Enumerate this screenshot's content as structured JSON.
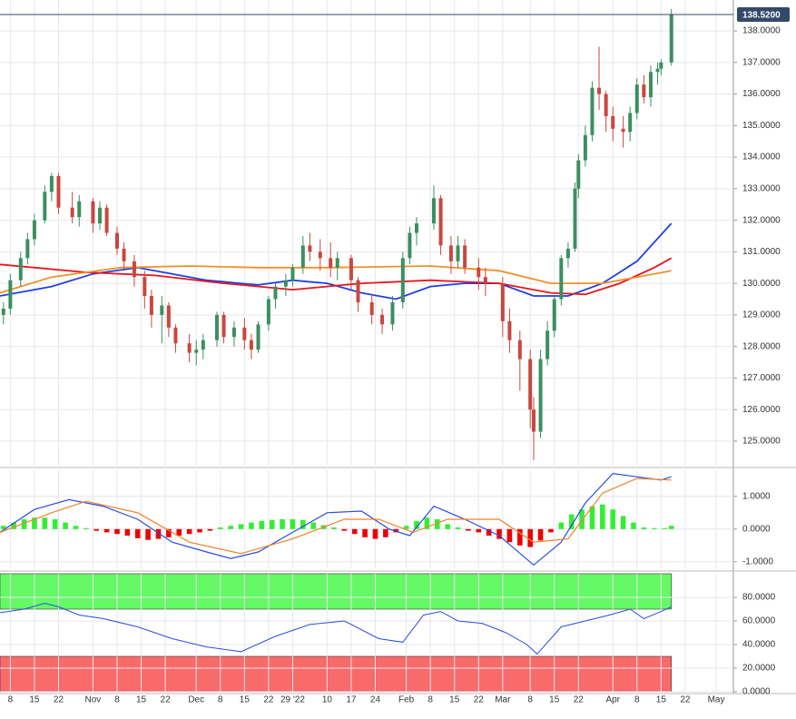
{
  "chart_data": [
    {
      "type": "candlestick",
      "up_color": "#3c8f5f",
      "down_color": "#c9473f",
      "xlim": [
        5,
        218
      ],
      "ylim": [
        124.25,
        138.98
      ],
      "yticks": [
        {
          "value": 125,
          "label": "125.0000"
        },
        {
          "value": 126,
          "label": "126.0000"
        },
        {
          "value": 127,
          "label": "127.0000"
        },
        {
          "value": 128,
          "label": "128.0000"
        },
        {
          "value": 129,
          "label": "129.0000"
        },
        {
          "value": 130,
          "label": "130.0000"
        },
        {
          "value": 131,
          "label": "131.0000"
        },
        {
          "value": 132,
          "label": "132.0000"
        },
        {
          "value": 133,
          "label": "133.0000"
        },
        {
          "value": 134,
          "label": "134.0000"
        },
        {
          "value": 135,
          "label": "135.0000"
        },
        {
          "value": 136,
          "label": "136.0000"
        },
        {
          "value": 137,
          "label": "137.0000"
        },
        {
          "value": 138,
          "label": "138.0000"
        }
      ],
      "last_price": {
        "value": 138.52,
        "label": "138.5200"
      },
      "x": [
        6,
        8,
        11,
        13,
        15,
        18,
        20,
        22,
        26,
        28,
        32,
        34,
        36,
        39,
        41,
        44,
        47,
        49,
        52,
        54,
        56,
        60,
        62,
        64,
        68,
        70,
        73,
        76,
        78,
        80,
        83,
        85,
        88,
        90,
        93,
        95,
        98,
        101,
        103,
        107,
        109,
        113,
        116,
        119,
        122,
        124,
        126,
        131,
        133,
        136,
        138,
        140,
        144,
        146,
        151,
        153,
        156,
        159,
        160,
        162,
        164,
        166,
        168,
        170,
        172,
        173,
        175,
        177,
        179,
        181,
        183,
        186,
        188,
        190,
        192,
        194,
        196,
        197,
        200
      ],
      "open": [
        129.0,
        129.2,
        130.1,
        130.8,
        131.4,
        132.0,
        132.9,
        133.4,
        132.4,
        132.1,
        132.6,
        131.9,
        132.4,
        131.6,
        131.1,
        130.7,
        130.2,
        129.6,
        129.0,
        129.3,
        128.6,
        128.1,
        127.8,
        127.9,
        128.2,
        129.0,
        128.3,
        128.6,
        128.2,
        127.9,
        128.7,
        129.5,
        129.9,
        130.1,
        130.5,
        131.2,
        131.0,
        130.8,
        130.5,
        130.8,
        130.1,
        129.4,
        129.0,
        128.7,
        129.4,
        130.8,
        131.6,
        131.9,
        132.7,
        131.2,
        130.7,
        131.2,
        130.5,
        130.2,
        130.0,
        128.8,
        128.2,
        127.6,
        126.0,
        125.3,
        127.6,
        128.5,
        129.5,
        130.8,
        131.1,
        133.0,
        133.9,
        134.7,
        136.2,
        136.0,
        135.3,
        134.9,
        134.8,
        135.4,
        136.3,
        135.9,
        136.7,
        136.8,
        137.0
      ],
      "high": [
        129.4,
        130.3,
        131.0,
        131.6,
        132.2,
        133.1,
        133.5,
        133.5,
        132.9,
        132.8,
        132.7,
        132.6,
        132.5,
        131.8,
        131.3,
        130.9,
        130.4,
        129.8,
        129.6,
        129.4,
        128.7,
        128.4,
        128.2,
        128.4,
        129.1,
        129.1,
        128.8,
        128.9,
        128.4,
        128.8,
        129.6,
        130.0,
        130.3,
        130.6,
        131.5,
        131.6,
        131.4,
        131.3,
        131.0,
        130.9,
        130.2,
        129.6,
        129.2,
        129.6,
        131.0,
        131.8,
        132.1,
        133.1,
        132.8,
        131.5,
        131.5,
        131.4,
        130.8,
        130.5,
        130.2,
        129.2,
        128.5,
        127.9,
        126.4,
        127.9,
        128.8,
        129.6,
        130.9,
        131.3,
        133.2,
        134.1,
        135.0,
        136.4,
        137.5,
        136.1,
        135.6,
        135.3,
        135.6,
        136.5,
        136.6,
        136.9,
        137.0,
        137.1,
        138.7
      ],
      "low": [
        128.7,
        129.0,
        129.9,
        130.6,
        131.2,
        131.9,
        132.6,
        132.2,
        131.9,
        131.8,
        131.6,
        131.7,
        131.5,
        130.9,
        130.4,
        129.9,
        129.2,
        128.6,
        128.1,
        128.3,
        127.8,
        127.5,
        127.4,
        127.6,
        128.0,
        128.1,
        128.0,
        127.9,
        127.6,
        127.8,
        128.5,
        129.2,
        129.6,
        129.9,
        130.3,
        130.7,
        130.4,
        130.2,
        130.1,
        129.8,
        129.1,
        128.7,
        128.4,
        128.5,
        129.2,
        130.6,
        131.2,
        131.7,
        130.9,
        130.3,
        130.5,
        130.3,
        129.8,
        129.6,
        128.3,
        127.8,
        126.6,
        125.4,
        124.4,
        125.1,
        127.4,
        128.3,
        129.3,
        130.5,
        131.0,
        132.7,
        133.7,
        134.5,
        135.5,
        134.8,
        134.5,
        134.3,
        134.5,
        135.2,
        135.7,
        135.6,
        136.3,
        136.6,
        136.9
      ],
      "close": [
        129.2,
        130.1,
        130.8,
        131.4,
        132.0,
        132.9,
        133.4,
        132.4,
        132.1,
        132.6,
        131.9,
        132.4,
        131.6,
        131.1,
        130.7,
        130.2,
        129.6,
        129.0,
        129.3,
        128.6,
        128.1,
        127.8,
        127.9,
        128.2,
        129.0,
        128.3,
        128.6,
        128.2,
        127.9,
        128.7,
        129.5,
        129.9,
        130.1,
        130.5,
        131.2,
        131.0,
        130.8,
        130.5,
        130.8,
        130.1,
        129.4,
        129.0,
        128.7,
        129.4,
        130.8,
        131.6,
        131.9,
        132.7,
        131.2,
        130.7,
        131.2,
        130.5,
        130.2,
        130.0,
        128.8,
        128.2,
        127.6,
        126.0,
        125.3,
        127.6,
        128.5,
        129.5,
        130.8,
        131.1,
        133.0,
        133.9,
        134.7,
        136.2,
        136.0,
        135.3,
        134.9,
        134.8,
        135.4,
        136.3,
        135.9,
        136.7,
        136.8,
        137.0,
        138.52
      ],
      "overlays": [
        {
          "color": "#1f3fe0",
          "x": [
            5,
            20,
            32,
            45,
            55,
            65,
            80,
            90,
            100,
            110,
            120,
            130,
            140,
            150,
            160,
            170,
            180,
            190,
            200
          ],
          "values": [
            129.6,
            129.9,
            130.3,
            130.5,
            130.3,
            130.1,
            129.95,
            130.1,
            130.0,
            129.7,
            129.5,
            129.9,
            130.0,
            130.0,
            129.6,
            129.6,
            130.0,
            130.7,
            131.9
          ]
        },
        {
          "color": "#e5161b",
          "x": [
            5,
            30,
            50,
            70,
            90,
            110,
            130,
            150,
            165,
            175,
            185,
            195,
            200
          ],
          "values": [
            130.6,
            130.35,
            130.25,
            130.0,
            129.8,
            130.0,
            130.1,
            130.0,
            129.7,
            129.65,
            130.0,
            130.5,
            130.8
          ]
        },
        {
          "color": "#f0912a",
          "x": [
            5,
            20,
            40,
            60,
            80,
            100,
            130,
            150,
            165,
            180,
            190,
            200
          ],
          "values": [
            129.7,
            130.2,
            130.5,
            130.55,
            130.5,
            130.5,
            130.55,
            130.4,
            130.0,
            130.0,
            130.2,
            130.4
          ]
        }
      ]
    },
    {
      "type": "macd",
      "xlim": [
        5,
        218
      ],
      "ylim": [
        -1.2,
        1.8
      ],
      "yticks": [
        {
          "value": -1,
          "label": "-1.0000"
        },
        {
          "value": 0,
          "label": "0.0000"
        },
        {
          "value": 1,
          "label": "1.0000"
        }
      ],
      "histogram": {
        "up_color": "#33ee33",
        "down_color": "#ee0000",
        "x": [
          6,
          9,
          12,
          15,
          18,
          21,
          24,
          27,
          30,
          33,
          36,
          39,
          42,
          45,
          48,
          51,
          54,
          57,
          60,
          63,
          66,
          69,
          72,
          75,
          78,
          81,
          84,
          87,
          90,
          93,
          96,
          99,
          102,
          105,
          108,
          111,
          114,
          117,
          120,
          123,
          126,
          129,
          132,
          135,
          138,
          141,
          144,
          147,
          150,
          153,
          156,
          159,
          162,
          165,
          168,
          171,
          174,
          177,
          180,
          183,
          186,
          189,
          192,
          195,
          198,
          200
        ],
        "values": [
          0.1,
          0.2,
          0.3,
          0.35,
          0.35,
          0.3,
          0.2,
          0.1,
          0.03,
          -0.05,
          -0.1,
          -0.15,
          -0.2,
          -0.28,
          -0.33,
          -0.3,
          -0.25,
          -0.2,
          -0.15,
          -0.1,
          -0.05,
          0.05,
          0.1,
          0.15,
          0.2,
          0.25,
          0.28,
          0.3,
          0.3,
          0.28,
          0.2,
          0.12,
          0.05,
          -0.05,
          -0.15,
          -0.25,
          -0.3,
          -0.25,
          -0.1,
          0.1,
          0.25,
          0.35,
          0.3,
          0.15,
          0.05,
          -0.05,
          -0.1,
          -0.2,
          -0.3,
          -0.4,
          -0.5,
          -0.55,
          -0.35,
          -0.1,
          0.2,
          0.45,
          0.6,
          0.7,
          0.75,
          0.6,
          0.4,
          0.2,
          0.05,
          0.03,
          0.03,
          0.1
        ]
      },
      "lines": [
        {
          "color": "#2b4de0",
          "x": [
            5,
            15,
            25,
            35,
            45,
            55,
            65,
            72,
            80,
            90,
            100,
            110,
            118,
            124,
            131,
            140,
            150,
            160,
            168,
            175,
            183,
            190,
            197,
            200
          ],
          "values": [
            -0.1,
            0.6,
            0.9,
            0.7,
            0.3,
            -0.4,
            -0.7,
            -0.9,
            -0.7,
            -0.1,
            0.5,
            0.55,
            0.0,
            -0.2,
            0.7,
            0.3,
            -0.2,
            -1.1,
            -0.4,
            0.8,
            1.7,
            1.6,
            1.5,
            1.6
          ]
        },
        {
          "color": "#f0812a",
          "x": [
            5,
            20,
            30,
            45,
            60,
            75,
            90,
            105,
            115,
            125,
            135,
            150,
            160,
            170,
            180,
            190,
            200
          ],
          "values": [
            -0.1,
            0.5,
            0.85,
            0.5,
            -0.4,
            -0.75,
            -0.3,
            0.3,
            0.3,
            -0.1,
            0.3,
            0.3,
            -0.4,
            -0.3,
            1.1,
            1.55,
            1.5
          ]
        }
      ]
    },
    {
      "type": "rsi",
      "xlim": [
        5,
        218
      ],
      "ylim": [
        0,
        100
      ],
      "yticks": [
        {
          "value": 0,
          "label": "0.0000"
        },
        {
          "value": 20,
          "label": "20.0000"
        },
        {
          "value": 40,
          "label": "40.0000"
        },
        {
          "value": 60,
          "label": "60.0000"
        },
        {
          "value": 80,
          "label": "80.0000"
        }
      ],
      "zones": [
        {
          "from": 70,
          "to": 100,
          "color": "#66f966"
        },
        {
          "from": 0,
          "to": 30,
          "color": "#f96a6a"
        }
      ],
      "line": {
        "color": "#2b4de0",
        "x": [
          5,
          12,
          18,
          22,
          28,
          35,
          45,
          55,
          65,
          75,
          85,
          95,
          105,
          115,
          122,
          128,
          133,
          138,
          145,
          152,
          158,
          161,
          168,
          175,
          182,
          188,
          192,
          197,
          200
        ],
        "values": [
          67,
          70,
          75,
          72,
          65,
          62,
          55,
          45,
          38,
          34,
          47,
          57,
          60,
          45,
          42,
          65,
          68,
          60,
          58,
          50,
          40,
          32,
          55,
          60,
          65,
          70,
          62,
          68,
          72
        ]
      },
      "xticks": [
        {
          "value": 8,
          "label": "8"
        },
        {
          "value": 15,
          "label": "15"
        },
        {
          "value": 22,
          "label": "22"
        },
        {
          "value": 32,
          "label": "Nov"
        },
        {
          "value": 39,
          "label": "8"
        },
        {
          "value": 46,
          "label": "15"
        },
        {
          "value": 53,
          "label": "22"
        },
        {
          "value": 62,
          "label": "Dec"
        },
        {
          "value": 69,
          "label": "8"
        },
        {
          "value": 76,
          "label": "15"
        },
        {
          "value": 83,
          "label": "22"
        },
        {
          "value": 90,
          "label": "29 '22"
        },
        {
          "value": 100,
          "label": "10"
        },
        {
          "value": 107,
          "label": "17"
        },
        {
          "value": 114,
          "label": "24"
        },
        {
          "value": 123,
          "label": "Feb"
        },
        {
          "value": 130,
          "label": "8"
        },
        {
          "value": 137,
          "label": "15"
        },
        {
          "value": 144,
          "label": "22"
        },
        {
          "value": 151,
          "label": "Mar"
        },
        {
          "value": 159,
          "label": "8"
        },
        {
          "value": 166,
          "label": "15"
        },
        {
          "value": 173,
          "label": "22"
        },
        {
          "value": 183,
          "label": "Apr"
        },
        {
          "value": 190,
          "label": "8"
        },
        {
          "value": 197,
          "label": "15"
        },
        {
          "value": 204,
          "label": "22"
        },
        {
          "value": 213,
          "label": "May"
        }
      ]
    }
  ]
}
